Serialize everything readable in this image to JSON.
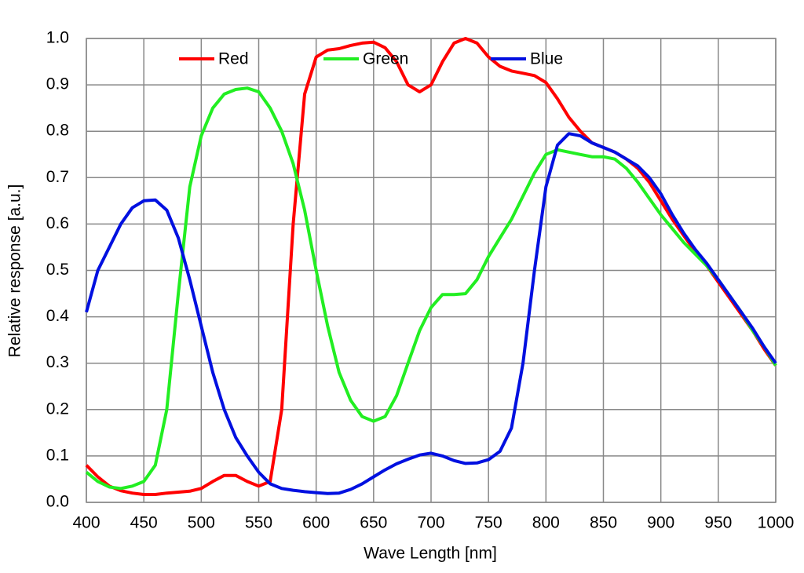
{
  "chart_data": {
    "type": "line",
    "x_label": "Wave Length [nm]",
    "y_label": "Relative response [a.u.]",
    "x": [
      400,
      410,
      420,
      430,
      440,
      450,
      460,
      470,
      480,
      490,
      500,
      510,
      520,
      530,
      540,
      550,
      560,
      570,
      580,
      590,
      600,
      610,
      620,
      630,
      640,
      650,
      660,
      670,
      680,
      690,
      700,
      710,
      720,
      730,
      740,
      750,
      760,
      770,
      780,
      790,
      800,
      810,
      820,
      830,
      840,
      850,
      860,
      870,
      880,
      890,
      900,
      910,
      920,
      930,
      940,
      950,
      960,
      970,
      980,
      990,
      1000
    ],
    "series": [
      {
        "name": "Red",
        "color": "#ff0000",
        "values": [
          0.08,
          0.055,
          0.035,
          0.025,
          0.02,
          0.017,
          0.017,
          0.02,
          0.022,
          0.024,
          0.03,
          0.045,
          0.058,
          0.058,
          0.045,
          0.035,
          0.045,
          0.2,
          0.6,
          0.88,
          0.96,
          0.975,
          0.978,
          0.985,
          0.99,
          0.992,
          0.98,
          0.95,
          0.9,
          0.885,
          0.9,
          0.95,
          0.99,
          1.0,
          0.99,
          0.96,
          0.94,
          0.93,
          0.925,
          0.92,
          0.905,
          0.87,
          0.83,
          0.8,
          0.775,
          0.765,
          0.755,
          0.74,
          0.72,
          0.69,
          0.65,
          0.61,
          0.575,
          0.54,
          0.51,
          0.475,
          0.44,
          0.405,
          0.37,
          0.33,
          0.295
        ]
      },
      {
        "name": "Green",
        "color": "#22ee22",
        "values": [
          0.065,
          0.045,
          0.033,
          0.03,
          0.035,
          0.045,
          0.08,
          0.2,
          0.45,
          0.68,
          0.79,
          0.85,
          0.88,
          0.89,
          0.893,
          0.885,
          0.85,
          0.8,
          0.73,
          0.63,
          0.5,
          0.38,
          0.28,
          0.22,
          0.185,
          0.175,
          0.185,
          0.23,
          0.3,
          0.37,
          0.42,
          0.448,
          0.448,
          0.45,
          0.48,
          0.53,
          0.57,
          0.61,
          0.66,
          0.71,
          0.75,
          0.76,
          0.755,
          0.75,
          0.745,
          0.745,
          0.74,
          0.72,
          0.69,
          0.655,
          0.62,
          0.59,
          0.56,
          0.535,
          0.51,
          0.48,
          0.445,
          0.41,
          0.37,
          0.335,
          0.295
        ]
      },
      {
        "name": "Blue",
        "color": "#0010e0",
        "values": [
          0.41,
          0.5,
          0.55,
          0.6,
          0.635,
          0.65,
          0.652,
          0.63,
          0.57,
          0.48,
          0.38,
          0.28,
          0.2,
          0.14,
          0.1,
          0.065,
          0.04,
          0.03,
          0.026,
          0.023,
          0.021,
          0.019,
          0.02,
          0.028,
          0.04,
          0.055,
          0.07,
          0.083,
          0.093,
          0.102,
          0.106,
          0.1,
          0.09,
          0.084,
          0.085,
          0.092,
          0.11,
          0.16,
          0.3,
          0.5,
          0.68,
          0.77,
          0.795,
          0.79,
          0.775,
          0.765,
          0.755,
          0.74,
          0.725,
          0.7,
          0.665,
          0.62,
          0.58,
          0.545,
          0.515,
          0.48,
          0.445,
          0.41,
          0.375,
          0.335,
          0.3
        ]
      }
    ],
    "xlim": [
      400,
      1000
    ],
    "xticks": [
      400,
      450,
      500,
      550,
      600,
      650,
      700,
      750,
      800,
      850,
      900,
      950,
      1000
    ],
    "ylim": [
      0,
      1
    ],
    "yticks": [
      {
        "value": 0,
        "label": "0.0"
      },
      0.1,
      0.2,
      0.3,
      0.4,
      0.5,
      0.6,
      0.7,
      0.8,
      0.9,
      {
        "value": 1,
        "label": "1.0"
      }
    ],
    "grid": true,
    "legend": "top"
  }
}
